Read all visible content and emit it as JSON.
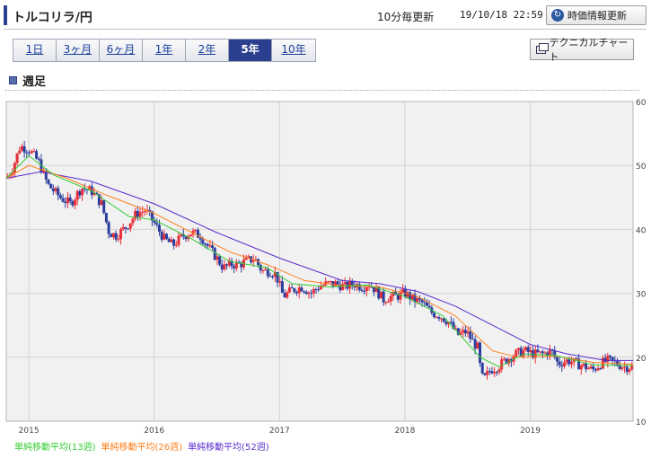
{
  "header": {
    "title": "トルコリラ/円",
    "update_frequency": "10分毎更新",
    "timestamp": "19/10/18 22:59",
    "refresh_label": "時価情報更新",
    "refresh_icon": "refresh-icon"
  },
  "period_tabs": [
    {
      "label": "1日",
      "active": false
    },
    {
      "label": "3ヶ月",
      "active": false
    },
    {
      "label": "6ヶ月",
      "active": false
    },
    {
      "label": "1年",
      "active": false
    },
    {
      "label": "2年",
      "active": false
    },
    {
      "label": "5年",
      "active": true
    },
    {
      "label": "10年",
      "active": false
    }
  ],
  "technical_chart_label": "テクニカルチャート",
  "technical_chart_icon": "window-icon",
  "section_title": "週足",
  "colors": {
    "accent": "#2b3f8f",
    "up_candle": "#e8303a",
    "down_candle": "#2d3f9e",
    "ma13": "#33cc33",
    "ma26": "#ff7f1a",
    "ma52": "#5b2ccf",
    "plot_bg": "#f1f1f1",
    "grid": "#d2d2d2"
  },
  "chart_data": {
    "type": "candlestick",
    "interval": "weekly",
    "x_range": [
      2014.82,
      2019.82
    ],
    "ylim": [
      10,
      60
    ],
    "y_ticks": [
      10,
      20,
      30,
      40,
      50,
      60
    ],
    "x_ticks": [
      "2015",
      "2016",
      "2017",
      "2018",
      "2019"
    ],
    "x_tick_values": [
      2015,
      2016,
      2017,
      2018,
      2019
    ],
    "grid": true,
    "close_path": [
      [
        2014.82,
        48.0
      ],
      [
        2014.87,
        49.5
      ],
      [
        2014.93,
        53.0
      ],
      [
        2015.0,
        52.5
      ],
      [
        2015.08,
        50.5
      ],
      [
        2015.15,
        47.0
      ],
      [
        2015.25,
        45.0
      ],
      [
        2015.33,
        44.0
      ],
      [
        2015.42,
        46.5
      ],
      [
        2015.5,
        46.0
      ],
      [
        2015.58,
        44.0
      ],
      [
        2015.64,
        39.5
      ],
      [
        2015.7,
        39.0
      ],
      [
        2015.78,
        40.5
      ],
      [
        2015.86,
        42.5
      ],
      [
        2015.93,
        43.0
      ],
      [
        2016.0,
        41.0
      ],
      [
        2016.08,
        38.5
      ],
      [
        2016.15,
        37.5
      ],
      [
        2016.23,
        39.0
      ],
      [
        2016.3,
        39.5
      ],
      [
        2016.37,
        39.0
      ],
      [
        2016.44,
        37.0
      ],
      [
        2016.5,
        35.5
      ],
      [
        2016.55,
        34.0
      ],
      [
        2016.62,
        34.5
      ],
      [
        2016.68,
        34.5
      ],
      [
        2016.73,
        35.0
      ],
      [
        2016.8,
        35.5
      ],
      [
        2016.86,
        33.5
      ],
      [
        2016.92,
        33.5
      ],
      [
        2016.97,
        33.0
      ],
      [
        2017.03,
        29.5
      ],
      [
        2017.1,
        30.5
      ],
      [
        2017.18,
        31.0
      ],
      [
        2017.25,
        30.0
      ],
      [
        2017.31,
        31.0
      ],
      [
        2017.38,
        31.5
      ],
      [
        2017.45,
        31.5
      ],
      [
        2017.52,
        31.0
      ],
      [
        2017.59,
        31.5
      ],
      [
        2017.66,
        31.0
      ],
      [
        2017.71,
        31.5
      ],
      [
        2017.77,
        30.5
      ],
      [
        2017.83,
        29.0
      ],
      [
        2017.88,
        29.5
      ],
      [
        2017.93,
        29.5
      ],
      [
        2018.0,
        30.0
      ],
      [
        2018.07,
        29.0
      ],
      [
        2018.14,
        28.5
      ],
      [
        2018.21,
        27.0
      ],
      [
        2018.28,
        26.5
      ],
      [
        2018.35,
        25.5
      ],
      [
        2018.42,
        23.5
      ],
      [
        2018.49,
        24.0
      ],
      [
        2018.54,
        22.5
      ],
      [
        2018.58,
        21.5
      ],
      [
        2018.61,
        17.0
      ],
      [
        2018.63,
        16.5
      ],
      [
        2018.68,
        18.0
      ],
      [
        2018.74,
        18.5
      ],
      [
        2018.8,
        19.5
      ],
      [
        2018.88,
        20.5
      ],
      [
        2018.95,
        21.0
      ],
      [
        2019.03,
        20.5
      ],
      [
        2019.1,
        20.5
      ],
      [
        2019.17,
        21.0
      ],
      [
        2019.22,
        19.0
      ],
      [
        2019.3,
        19.5
      ],
      [
        2019.37,
        19.0
      ],
      [
        2019.44,
        18.5
      ],
      [
        2019.5,
        18.0
      ],
      [
        2019.56,
        19.0
      ],
      [
        2019.62,
        19.5
      ],
      [
        2019.69,
        19.0
      ],
      [
        2019.75,
        18.5
      ],
      [
        2019.82,
        18.5
      ]
    ],
    "ma13_path": [
      [
        2014.82,
        48.0
      ],
      [
        2015.0,
        51.5
      ],
      [
        2015.2,
        48.5
      ],
      [
        2015.5,
        46.0
      ],
      [
        2015.8,
        42.0
      ],
      [
        2016.0,
        41.5
      ],
      [
        2016.3,
        38.5
      ],
      [
        2016.6,
        35.0
      ],
      [
        2016.9,
        34.0
      ],
      [
        2017.1,
        31.5
      ],
      [
        2017.4,
        31.0
      ],
      [
        2017.7,
        31.3
      ],
      [
        2018.0,
        29.5
      ],
      [
        2018.3,
        26.5
      ],
      [
        2018.6,
        20.0
      ],
      [
        2018.75,
        18.5
      ],
      [
        2018.95,
        20.5
      ],
      [
        2019.2,
        20.3
      ],
      [
        2019.5,
        18.8
      ],
      [
        2019.82,
        18.7
      ]
    ],
    "ma26_path": [
      [
        2014.82,
        48.0
      ],
      [
        2015.0,
        50.0
      ],
      [
        2015.3,
        48.0
      ],
      [
        2015.6,
        45.5
      ],
      [
        2016.0,
        42.5
      ],
      [
        2016.3,
        39.5
      ],
      [
        2016.6,
        36.5
      ],
      [
        2016.9,
        34.5
      ],
      [
        2017.2,
        32.0
      ],
      [
        2017.5,
        31.2
      ],
      [
        2017.8,
        31.0
      ],
      [
        2018.1,
        29.5
      ],
      [
        2018.4,
        26.5
      ],
      [
        2018.7,
        21.0
      ],
      [
        2018.9,
        20.0
      ],
      [
        2019.2,
        20.2
      ],
      [
        2019.5,
        19.2
      ],
      [
        2019.82,
        18.9
      ]
    ],
    "ma52_path": [
      [
        2014.82,
        48.0
      ],
      [
        2015.1,
        49.0
      ],
      [
        2015.5,
        47.5
      ],
      [
        2016.0,
        44.0
      ],
      [
        2016.5,
        39.5
      ],
      [
        2017.0,
        35.5
      ],
      [
        2017.5,
        32.0
      ],
      [
        2017.8,
        31.5
      ],
      [
        2018.1,
        30.3
      ],
      [
        2018.4,
        28.0
      ],
      [
        2018.7,
        25.0
      ],
      [
        2019.0,
        22.0
      ],
      [
        2019.3,
        20.5
      ],
      [
        2019.6,
        19.5
      ],
      [
        2019.82,
        19.5
      ]
    ]
  },
  "legend": [
    {
      "label": "単純移動平均(13週)",
      "color": "#33cc33"
    },
    {
      "label": "単純移動平均(26週)",
      "color": "#ff7f1a"
    },
    {
      "label": "単純移動平均(52週)",
      "color": "#5b2ccf"
    }
  ]
}
